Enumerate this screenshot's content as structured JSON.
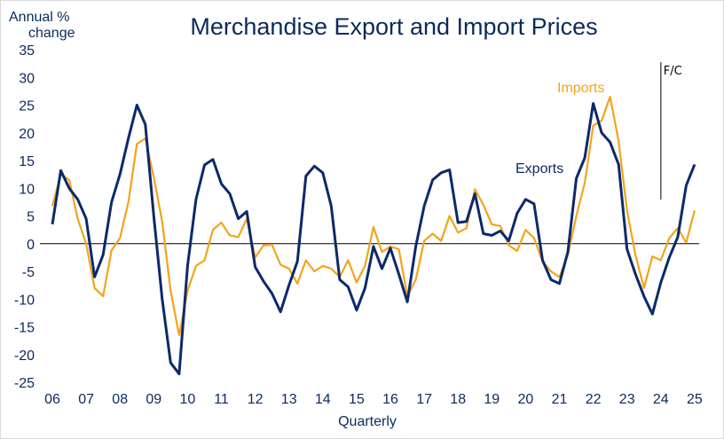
{
  "chart_data": {
    "type": "line",
    "title": "Merchandise Export and Import Prices",
    "ylabel_line1": "Annual %",
    "ylabel_line2": "change",
    "xlabel": "Quarterly",
    "ylim": [
      -25,
      35
    ],
    "ytick_step": 5,
    "y_ticks": [
      "35",
      "30",
      "25",
      "20",
      "15",
      "10",
      "5",
      "0",
      "-5",
      "-10",
      "-15",
      "-20",
      "-25"
    ],
    "x_ticks": [
      "06",
      "07",
      "08",
      "09",
      "10",
      "11",
      "12",
      "13",
      "14",
      "15",
      "16",
      "17",
      "18",
      "19",
      "20",
      "21",
      "22",
      "23",
      "24",
      "25"
    ],
    "forecast_marker": {
      "label": "F/C",
      "x": 2024.0
    },
    "colors": {
      "exports": "#0b2a6b",
      "imports": "#f2a41c",
      "text": "#0b2a5c"
    },
    "series": [
      {
        "name": "Exports",
        "x": [
          2006.0,
          2006.25,
          2006.5,
          2006.75,
          2007.0,
          2007.25,
          2007.5,
          2007.75,
          2008.0,
          2008.25,
          2008.5,
          2008.75,
          2009.0,
          2009.25,
          2009.5,
          2009.75,
          2010.0,
          2010.25,
          2010.5,
          2010.75,
          2011.0,
          2011.25,
          2011.5,
          2011.75,
          2012.0,
          2012.25,
          2012.5,
          2012.75,
          2013.0,
          2013.25,
          2013.5,
          2013.75,
          2014.0,
          2014.25,
          2014.5,
          2014.75,
          2015.0,
          2015.25,
          2015.5,
          2015.75,
          2016.0,
          2016.25,
          2016.5,
          2016.75,
          2017.0,
          2017.25,
          2017.5,
          2017.75,
          2018.0,
          2018.25,
          2018.5,
          2018.75,
          2019.0,
          2019.25,
          2019.5,
          2019.75,
          2020.0,
          2020.25,
          2020.5,
          2020.75,
          2021.0,
          2021.25,
          2021.5,
          2021.75,
          2022.0,
          2022.25,
          2022.5,
          2022.75,
          2023.0,
          2023.25,
          2023.5,
          2023.75,
          2024.0,
          2024.25,
          2024.5,
          2024.75,
          2025.0
        ],
        "values": [
          3.5,
          13.2,
          10.0,
          8.0,
          4.5,
          -6.0,
          -2.0,
          7.5,
          12.5,
          19.0,
          25.0,
          21.5,
          5.0,
          -10.0,
          -21.5,
          -23.5,
          -4.0,
          8.0,
          14.2,
          15.2,
          10.8,
          9.0,
          4.5,
          5.8,
          -4.2,
          -6.8,
          -9.0,
          -12.3,
          -7.5,
          -3.2,
          12.2,
          14.0,
          12.8,
          6.8,
          -6.5,
          -7.8,
          -12.0,
          -8.0,
          -0.5,
          -4.5,
          -0.8,
          -5.5,
          -10.5,
          -0.5,
          6.8,
          11.5,
          12.8,
          13.3,
          3.8,
          4.0,
          9.0,
          1.8,
          1.5,
          2.3,
          0.5,
          5.5,
          8.0,
          7.2,
          -3.0,
          -6.5,
          -7.2,
          -1.5,
          11.8,
          15.5,
          25.3,
          20.0,
          18.3,
          14.3,
          -1.0,
          -5.5,
          -9.5,
          -12.7,
          -7.0,
          -2.5,
          1.2,
          10.5,
          14.3
        ]
      },
      {
        "name": "Imports",
        "x": [
          2006.0,
          2006.25,
          2006.5,
          2006.75,
          2007.0,
          2007.25,
          2007.5,
          2007.75,
          2008.0,
          2008.25,
          2008.5,
          2008.75,
          2009.0,
          2009.25,
          2009.5,
          2009.75,
          2010.0,
          2010.25,
          2010.5,
          2010.75,
          2011.0,
          2011.25,
          2011.5,
          2011.75,
          2012.0,
          2012.25,
          2012.5,
          2012.75,
          2013.0,
          2013.25,
          2013.5,
          2013.75,
          2014.0,
          2014.25,
          2014.5,
          2014.75,
          2015.0,
          2015.25,
          2015.5,
          2015.75,
          2016.0,
          2016.25,
          2016.5,
          2016.75,
          2017.0,
          2017.25,
          2017.5,
          2017.75,
          2018.0,
          2018.25,
          2018.5,
          2018.75,
          2019.0,
          2019.25,
          2019.5,
          2019.75,
          2020.0,
          2020.25,
          2020.5,
          2020.75,
          2021.0,
          2021.25,
          2021.5,
          2021.75,
          2022.0,
          2022.25,
          2022.5,
          2022.75,
          2023.0,
          2023.25,
          2023.5,
          2023.75,
          2024.0,
          2024.25,
          2024.5,
          2024.75,
          2025.0
        ],
        "values": [
          6.8,
          12.5,
          11.5,
          4.5,
          0.0,
          -8.0,
          -9.5,
          -1.2,
          1.0,
          7.5,
          18.0,
          19.0,
          12.0,
          4.0,
          -8.5,
          -16.5,
          -8.5,
          -4.0,
          -3.0,
          2.5,
          3.8,
          1.5,
          1.2,
          4.5,
          -2.5,
          -0.3,
          -0.2,
          -3.8,
          -4.5,
          -7.2,
          -3.0,
          -5.0,
          -4.0,
          -4.5,
          -6.0,
          -3.0,
          -7.0,
          -4.0,
          3.0,
          -1.5,
          -0.5,
          -1.0,
          -9.5,
          -6.5,
          0.5,
          1.8,
          0.5,
          5.0,
          2.0,
          2.8,
          9.8,
          7.0,
          3.5,
          3.2,
          -0.3,
          -1.3,
          2.5,
          1.0,
          -3.2,
          -5.0,
          -6.0,
          -2.0,
          5.0,
          11.0,
          21.3,
          22.2,
          26.5,
          18.5,
          6.0,
          -2.0,
          -8.0,
          -2.3,
          -3.0,
          1.0,
          2.8,
          0.2,
          6.0
        ]
      }
    ]
  }
}
